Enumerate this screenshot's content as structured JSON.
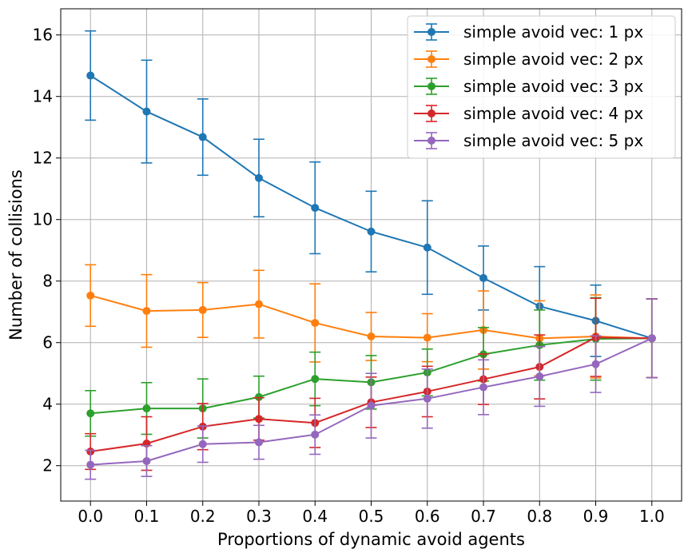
{
  "chart_data": {
    "type": "line",
    "title": "",
    "xlabel": "Proportions of dynamic avoid agents",
    "ylabel": "Number of collisions",
    "x": [
      0.0,
      0.1,
      0.2,
      0.3,
      0.4,
      0.5,
      0.6,
      0.7,
      0.8,
      0.9,
      1.0
    ],
    "x_tick_labels": [
      "0.0",
      "0.1",
      "0.2",
      "0.3",
      "0.4",
      "0.5",
      "0.6",
      "0.7",
      "0.8",
      "0.9",
      "1.0"
    ],
    "y_ticks": [
      2,
      4,
      6,
      8,
      10,
      12,
      14,
      16
    ],
    "y_tick_labels": [
      "2",
      "4",
      "6",
      "8",
      "10",
      "12",
      "14",
      "16"
    ],
    "xlim": [
      -0.053,
      1.053
    ],
    "ylim": [
      0.85,
      16.85
    ],
    "grid": true,
    "legend_position": "top-right",
    "error_bars": true,
    "series": [
      {
        "name": "simple avoid vec: 1 px",
        "color": "#1f77b4",
        "values": [
          14.68,
          13.51,
          12.68,
          11.35,
          10.38,
          9.61,
          9.09,
          8.1,
          7.18,
          6.71,
          6.14
        ],
        "errors": [
          1.45,
          1.67,
          1.24,
          1.26,
          1.49,
          1.31,
          1.52,
          1.04,
          1.29,
          1.16,
          1.28
        ]
      },
      {
        "name": "simple avoid vec: 2 px",
        "color": "#ff7f0e",
        "values": [
          7.53,
          7.03,
          7.06,
          7.25,
          6.64,
          6.2,
          6.16,
          6.41,
          6.14,
          6.2,
          6.14
        ],
        "errors": [
          1.0,
          1.18,
          0.89,
          1.1,
          1.27,
          0.78,
          0.78,
          1.27,
          1.22,
          1.35,
          1.28
        ]
      },
      {
        "name": "simple avoid vec: 3 px",
        "color": "#2ca02c",
        "values": [
          3.7,
          3.86,
          3.86,
          4.23,
          4.82,
          4.71,
          5.03,
          5.62,
          5.92,
          6.12,
          6.14
        ],
        "errors": [
          0.74,
          0.84,
          0.96,
          0.68,
          0.87,
          0.87,
          0.76,
          0.87,
          1.14,
          1.34,
          1.28
        ]
      },
      {
        "name": "simple avoid vec: 4 px",
        "color": "#d62728",
        "values": [
          2.46,
          2.72,
          3.27,
          3.52,
          3.39,
          4.06,
          4.41,
          4.81,
          5.21,
          6.17,
          6.14
        ],
        "errors": [
          0.58,
          0.87,
          0.75,
          0.69,
          0.8,
          0.82,
          0.82,
          0.82,
          1.04,
          1.27,
          1.28
        ]
      },
      {
        "name": "simple avoid vec: 5 px",
        "color": "#9467bd",
        "values": [
          2.03,
          2.15,
          2.7,
          2.76,
          3.01,
          3.95,
          4.18,
          4.55,
          4.9,
          5.3,
          6.14
        ],
        "errors": [
          0.47,
          0.5,
          0.59,
          0.55,
          0.64,
          1.05,
          0.96,
          0.89,
          0.97,
          0.92,
          1.28
        ]
      }
    ]
  }
}
